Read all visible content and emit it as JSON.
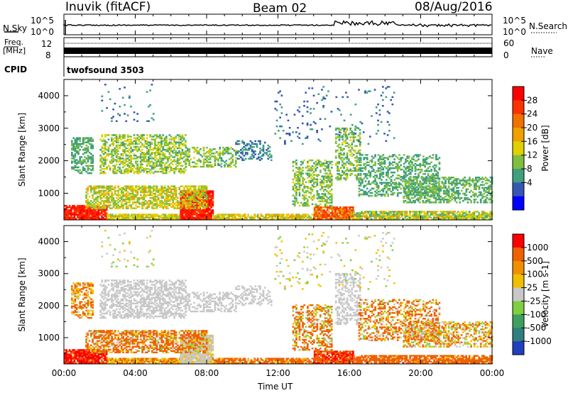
{
  "header": {
    "station": "Inuvik (fitACF)",
    "beam": "Beam 02",
    "date": "08/Aug/2016"
  },
  "nsky": {
    "label": "N.Sky",
    "ticks": [
      "10^5",
      "10^0"
    ],
    "right_ticks": [
      "10^5",
      "10^0"
    ],
    "right_label": "N.Search"
  },
  "freq": {
    "label_line1": "Freq.",
    "label_line2": "[MHz]",
    "ticks": [
      "12",
      "8"
    ],
    "right_ticks": [
      "60",
      "0"
    ],
    "right_label": "Nave"
  },
  "cpid": {
    "label": "CPID",
    "value": "twofsound 3503"
  },
  "time_axis": {
    "ticks": [
      "00:00",
      "04:00",
      "08:00",
      "12:00",
      "16:00",
      "20:00",
      "00:00"
    ],
    "label": "Time UT"
  },
  "chart_data": [
    {
      "type": "heatmap",
      "name": "power",
      "ylabel": "Slant Range [km]",
      "yticks": [
        "4000",
        "3000",
        "2000",
        "1000"
      ],
      "ylim": [
        180,
        4500
      ],
      "xlim_hours": [
        0,
        24
      ],
      "colorbar": {
        "label": "Power [dB]",
        "ticks": [
          "28",
          "24",
          "20",
          "16",
          "12",
          "8",
          "4"
        ],
        "range": [
          0,
          32
        ],
        "colors": [
          "#0000ff",
          "#3656b4",
          "#3f9f7f",
          "#7fbf3f",
          "#e0d000",
          "#f0a000",
          "#f07000",
          "#ff3000",
          "#ff0000"
        ]
      }
    },
    {
      "type": "heatmap",
      "name": "velocity",
      "ylabel": "Slant Range [km]",
      "yticks": [
        "4000",
        "3000",
        "2000",
        "1000"
      ],
      "ylim": [
        180,
        4500
      ],
      "xlim_hours": [
        0,
        24
      ],
      "colorbar": {
        "label": "Velocity [m s-1]",
        "ticks": [
          "1000",
          "500",
          "100",
          "25",
          "-25",
          "-100",
          "-500",
          "-1000"
        ],
        "colors": [
          "#1f3fbf",
          "#2f7f7f",
          "#3f9f5f",
          "#7fcf3f",
          "#c8c8c8",
          "#f0c000",
          "#f09000",
          "#f06000",
          "#ff0000"
        ]
      }
    }
  ]
}
